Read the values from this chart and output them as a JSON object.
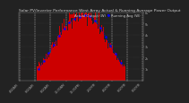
{
  "title": "Solar PV/Inverter Performance West Array Actual & Running Average Power Output",
  "title_fontsize": 3.2,
  "bg_color": "#222222",
  "plot_bg": "#222222",
  "bar_color": "#cc0000",
  "avg_color": "#0000ff",
  "grid_color": "#555555",
  "ylim": [
    0,
    6
  ],
  "n_bars": 144,
  "legend_actual": "Actual Output (W)",
  "legend_avg": "Running Avg (W)",
  "legend_fontsize": 2.8,
  "tick_color": "#aaaaaa",
  "tick_fontsize": 2.4,
  "spine_color": "#888888",
  "ylabel_right": true,
  "ytick_labels": [
    "1k",
    "2k",
    "3k",
    "4k",
    "5k",
    "6k"
  ],
  "ytick_vals": [
    1,
    2,
    3,
    4,
    5,
    6
  ],
  "xtick_labels": [
    "4:00AM",
    "6:00AM",
    "8:00AM",
    "10:00AM",
    "12:00PM",
    "2:00PM",
    "4:00PM",
    "6:00PM",
    "8:00PM"
  ],
  "xtick_positions": [
    0,
    18,
    36,
    54,
    72,
    90,
    108,
    126,
    143
  ]
}
